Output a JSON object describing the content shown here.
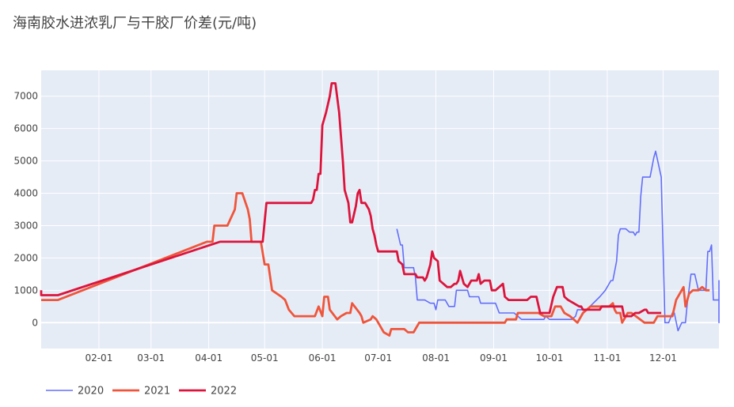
{
  "chart_data": {
    "type": "line",
    "title": "海南胶水进浓乳厂与干胶厂价差(元/吨)",
    "xlabel": "",
    "ylabel": "",
    "x_ticks": [
      "02-01",
      "03-01",
      "04-01",
      "05-01",
      "06-01",
      "07-01",
      "08-01",
      "09-01",
      "10-01",
      "11-01",
      "12-01"
    ],
    "y_ticks": [
      0,
      1000,
      2000,
      3000,
      4000,
      5000,
      6000,
      7000
    ],
    "xlim_day_of_year": [
      1,
      365
    ],
    "ylim": [
      -800,
      7800
    ],
    "grid": true,
    "legend_position": "bottom-left",
    "colors": {
      "plot_background": "#e5ecf6",
      "grid": "#ffffff"
    },
    "series": [
      {
        "name": "2020",
        "color": "#636efa",
        "width": 1.6,
        "points": [
          [
            201,
            2900
          ],
          [
            203,
            2400
          ],
          [
            204,
            2400
          ],
          [
            205,
            1700
          ],
          [
            208,
            1700
          ],
          [
            210,
            1700
          ],
          [
            211,
            1400
          ],
          [
            212,
            700
          ],
          [
            216,
            700
          ],
          [
            219,
            600
          ],
          [
            221,
            600
          ],
          [
            222,
            400
          ],
          [
            223,
            700
          ],
          [
            227,
            700
          ],
          [
            229,
            500
          ],
          [
            232,
            500
          ],
          [
            233,
            1000
          ],
          [
            239,
            1000
          ],
          [
            240,
            800
          ],
          [
            245,
            800
          ],
          [
            246,
            600
          ],
          [
            254,
            600
          ],
          [
            256,
            300
          ],
          [
            264,
            300
          ],
          [
            266,
            200
          ],
          [
            268,
            100
          ],
          [
            280,
            100
          ],
          [
            281,
            200
          ],
          [
            283,
            100
          ],
          [
            295,
            100
          ],
          [
            297,
            200
          ],
          [
            298,
            400
          ],
          [
            303,
            400
          ],
          [
            310,
            800
          ],
          [
            313,
            1000
          ],
          [
            316,
            1300
          ],
          [
            317,
            1300
          ],
          [
            319,
            1900
          ],
          [
            320,
            2700
          ],
          [
            321,
            2900
          ],
          [
            324,
            2900
          ],
          [
            326,
            2800
          ],
          [
            328,
            2800
          ],
          [
            329,
            2700
          ],
          [
            330,
            2800
          ],
          [
            331,
            2800
          ],
          [
            332,
            3900
          ],
          [
            333,
            4500
          ],
          [
            337,
            4500
          ],
          [
            339,
            5100
          ],
          [
            340,
            5300
          ],
          [
            343,
            4500
          ],
          [
            345,
            0
          ],
          [
            347,
            0
          ],
          [
            349,
            300
          ],
          [
            350,
            300
          ],
          [
            352,
            -250
          ],
          [
            354,
            0
          ],
          [
            356,
            0
          ],
          [
            357,
            600
          ],
          [
            359,
            1500
          ],
          [
            361,
            1500
          ],
          [
            363,
            1000
          ],
          [
            367,
            1000
          ],
          [
            368,
            2200
          ],
          [
            369,
            2200
          ],
          [
            370,
            2400
          ],
          [
            371,
            700
          ],
          [
            374,
            700
          ],
          [
            375,
            1200
          ],
          [
            377,
            700
          ],
          [
            379,
            800
          ],
          [
            381,
            300
          ],
          [
            383,
            0
          ],
          [
            385,
            0
          ],
          [
            386,
            800
          ],
          [
            387,
            800
          ],
          [
            389,
            1000
          ],
          [
            392,
            1300
          ],
          [
            397,
            1300
          ],
          [
            399,
            1000
          ],
          [
            401,
            700
          ],
          [
            409,
            700
          ]
        ]
      },
      {
        "name": "2021",
        "color": "#ef553b",
        "width": 2.8,
        "points": [
          [
            1,
            700
          ],
          [
            10,
            700
          ],
          [
            90,
            2500
          ],
          [
            93,
            2500
          ],
          [
            94,
            3000
          ],
          [
            101,
            3000
          ],
          [
            105,
            3500
          ],
          [
            106,
            4000
          ],
          [
            109,
            4000
          ],
          [
            112,
            3500
          ],
          [
            113,
            3200
          ],
          [
            114,
            2500
          ],
          [
            117,
            2500
          ],
          [
            119,
            2500
          ],
          [
            121,
            1800
          ],
          [
            123,
            1800
          ],
          [
            125,
            1000
          ],
          [
            130,
            800
          ],
          [
            132,
            700
          ],
          [
            134,
            400
          ],
          [
            137,
            200
          ],
          [
            148,
            200
          ],
          [
            150,
            500
          ],
          [
            152,
            200
          ],
          [
            153,
            800
          ],
          [
            155,
            800
          ],
          [
            156,
            400
          ],
          [
            160,
            100
          ],
          [
            162,
            200
          ],
          [
            165,
            300
          ],
          [
            167,
            300
          ],
          [
            168,
            600
          ],
          [
            172,
            300
          ],
          [
            173,
            200
          ],
          [
            174,
            0
          ],
          [
            178,
            100
          ],
          [
            179,
            200
          ],
          [
            181,
            100
          ],
          [
            185,
            -300
          ],
          [
            188,
            -400
          ],
          [
            189,
            -200
          ],
          [
            196,
            -200
          ],
          [
            198,
            -300
          ],
          [
            201,
            -300
          ],
          [
            204,
            0
          ],
          [
            215,
            0
          ],
          [
            250,
            0
          ],
          [
            251,
            100
          ],
          [
            256,
            100
          ],
          [
            257,
            300
          ],
          [
            268,
            300
          ],
          [
            271,
            200
          ],
          [
            275,
            200
          ],
          [
            277,
            500
          ],
          [
            280,
            500
          ],
          [
            282,
            300
          ],
          [
            285,
            200
          ],
          [
            289,
            0
          ],
          [
            292,
            300
          ],
          [
            294,
            400
          ],
          [
            296,
            500
          ],
          [
            306,
            500
          ],
          [
            308,
            600
          ],
          [
            309,
            400
          ],
          [
            310,
            300
          ],
          [
            312,
            300
          ],
          [
            313,
            0
          ],
          [
            316,
            300
          ],
          [
            318,
            300
          ],
          [
            325,
            0
          ],
          [
            330,
            0
          ],
          [
            332,
            200
          ],
          [
            340,
            200
          ],
          [
            342,
            700
          ],
          [
            346,
            1100
          ],
          [
            347,
            500
          ],
          [
            349,
            900
          ],
          [
            351,
            1000
          ],
          [
            354,
            1000
          ],
          [
            356,
            1100
          ],
          [
            358,
            1000
          ],
          [
            360,
            1000
          ]
        ]
      },
      {
        "name": "2022",
        "color": "#dc143c",
        "width": 2.8,
        "points": [
          [
            0,
            1000
          ],
          [
            1,
            850
          ],
          [
            10,
            850
          ],
          [
            97,
            2500
          ],
          [
            117,
            2500
          ],
          [
            120,
            2500
          ],
          [
            122,
            3700
          ],
          [
            146,
            3700
          ],
          [
            147,
            3800
          ],
          [
            148,
            4100
          ],
          [
            149,
            4100
          ],
          [
            150,
            4600
          ],
          [
            151,
            4600
          ],
          [
            152,
            6100
          ],
          [
            154,
            6500
          ],
          [
            156,
            7000
          ],
          [
            157,
            7400
          ],
          [
            159,
            7400
          ],
          [
            161,
            6500
          ],
          [
            163,
            5000
          ],
          [
            164,
            4100
          ],
          [
            166,
            3700
          ],
          [
            167,
            3100
          ],
          [
            168,
            3100
          ],
          [
            170,
            3600
          ],
          [
            171,
            4000
          ],
          [
            172,
            4100
          ],
          [
            173,
            3700
          ],
          [
            175,
            3700
          ],
          [
            177,
            3500
          ],
          [
            178,
            3300
          ],
          [
            179,
            2900
          ],
          [
            180,
            2700
          ],
          [
            181,
            2400
          ],
          [
            182,
            2200
          ],
          [
            185,
            2200
          ],
          [
            192,
            2200
          ],
          [
            193,
            1900
          ],
          [
            195,
            1800
          ],
          [
            196,
            1500
          ],
          [
            202,
            1500
          ],
          [
            203,
            1400
          ],
          [
            206,
            1400
          ],
          [
            207,
            1300
          ],
          [
            208,
            1400
          ],
          [
            210,
            1800
          ],
          [
            211,
            2200
          ],
          [
            212,
            2000
          ],
          [
            214,
            1900
          ],
          [
            215,
            1300
          ],
          [
            217,
            1200
          ],
          [
            219,
            1100
          ],
          [
            221,
            1100
          ],
          [
            223,
            1200
          ],
          [
            224,
            1200
          ],
          [
            225,
            1300
          ],
          [
            226,
            1600
          ],
          [
            228,
            1200
          ],
          [
            230,
            1100
          ],
          [
            232,
            1300
          ],
          [
            235,
            1300
          ],
          [
            236,
            1500
          ],
          [
            237,
            1200
          ],
          [
            239,
            1300
          ],
          [
            242,
            1300
          ],
          [
            243,
            1000
          ],
          [
            245,
            1000
          ],
          [
            247,
            1100
          ],
          [
            249,
            1200
          ],
          [
            250,
            800
          ],
          [
            252,
            700
          ],
          [
            259,
            700
          ],
          [
            262,
            700
          ],
          [
            264,
            800
          ],
          [
            267,
            800
          ],
          [
            269,
            300
          ],
          [
            274,
            300
          ],
          [
            276,
            800
          ],
          [
            278,
            1100
          ],
          [
            281,
            1100
          ],
          [
            282,
            800
          ],
          [
            284,
            700
          ],
          [
            287,
            600
          ],
          [
            290,
            500
          ],
          [
            291,
            500
          ],
          [
            292,
            400
          ],
          [
            301,
            400
          ],
          [
            302,
            500
          ],
          [
            304,
            500
          ],
          [
            305,
            500
          ],
          [
            306,
            500
          ],
          [
            313,
            500
          ],
          [
            314,
            200
          ],
          [
            316,
            200
          ],
          [
            318,
            200
          ],
          [
            320,
            300
          ],
          [
            322,
            300
          ],
          [
            325,
            400
          ],
          [
            326,
            400
          ],
          [
            327,
            300
          ],
          [
            328,
            300
          ],
          [
            334,
            300
          ]
        ]
      }
    ],
    "x_offset_note": "series 2021 and 2022 plotted by day-of-year; 2020 series plotted by day-of-year (2020 continues beyond; values placed on same calendar axis)"
  }
}
